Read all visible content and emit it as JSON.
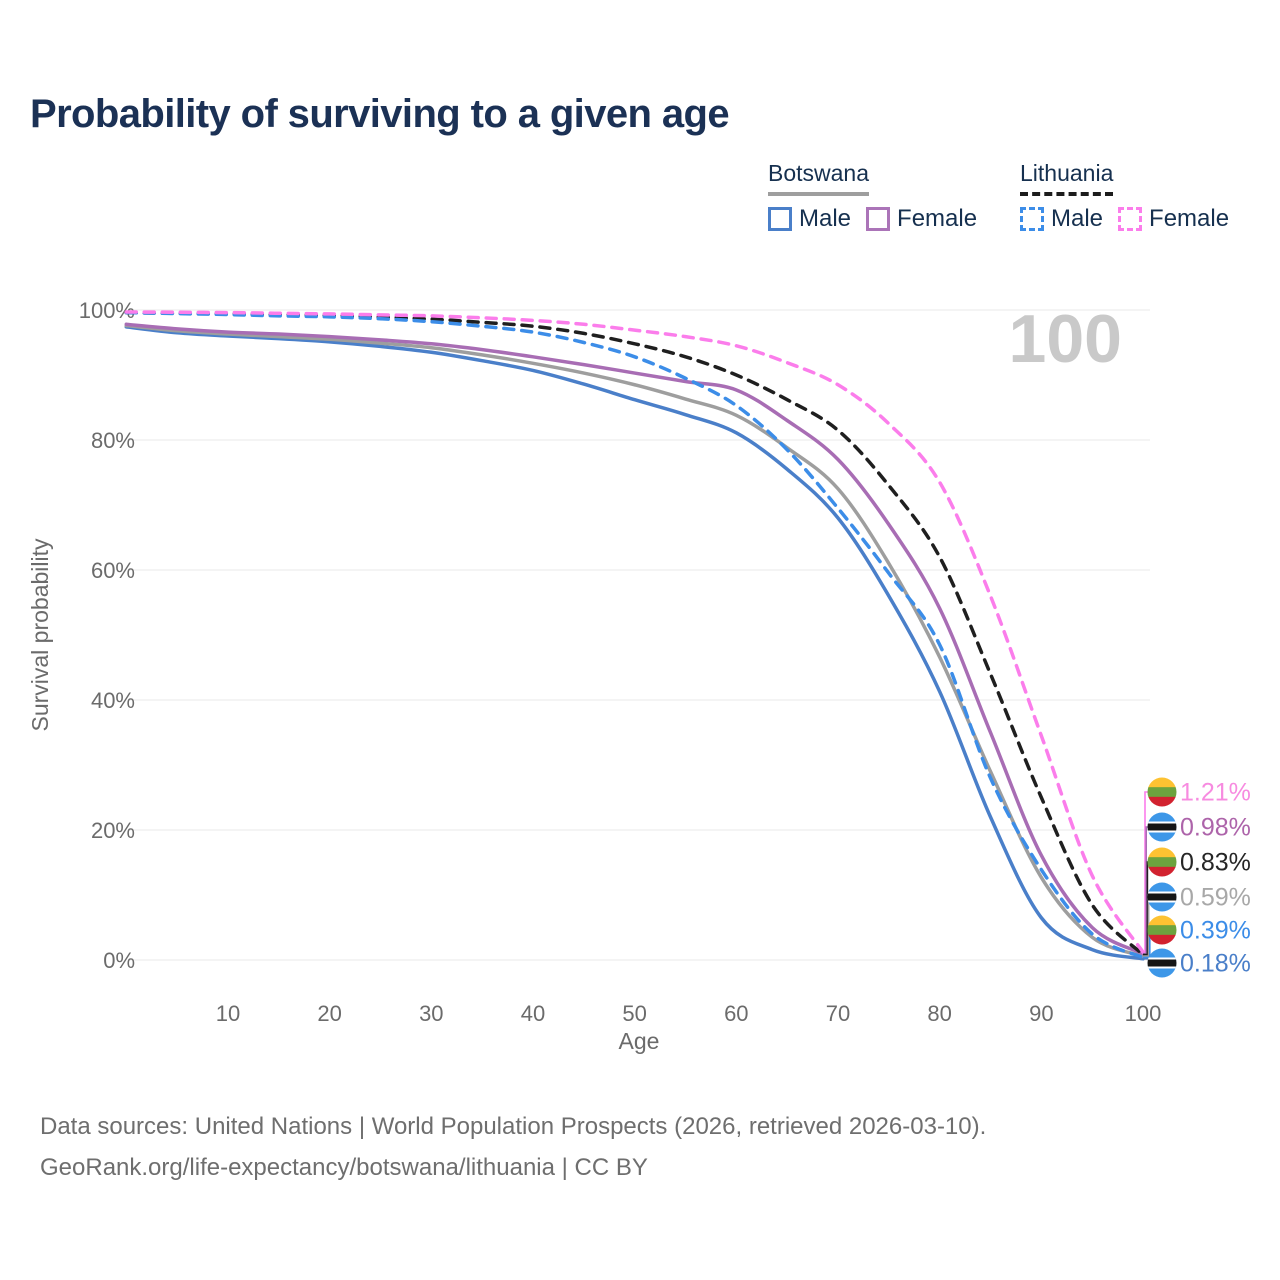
{
  "page": {
    "title": "Probability of surviving to a given age",
    "watermark": "100"
  },
  "legend": {
    "groups": [
      {
        "id": "botswana",
        "name": "Botswana",
        "line_style": "solid",
        "underline_color": "#9e9e9e",
        "items": [
          {
            "label": "Male",
            "color": "#4a7fc9"
          },
          {
            "label": "Female",
            "color": "#ab74b8"
          }
        ]
      },
      {
        "id": "lithuania",
        "name": "Lithuania",
        "line_style": "dashed",
        "underline_color": "#1c1c1c",
        "items": [
          {
            "label": "Male",
            "color": "#3c8de8"
          },
          {
            "label": "Female",
            "color": "#fb7deb"
          }
        ]
      }
    ]
  },
  "chart_data": {
    "type": "line",
    "title": "Probability of surviving to a given age",
    "xlabel": "Age",
    "ylabel": "Survival probability",
    "xlim": [
      0,
      100
    ],
    "ylim": [
      0,
      100
    ],
    "grid": true,
    "x_ticks": [
      10,
      20,
      30,
      40,
      50,
      60,
      70,
      80,
      90,
      100
    ],
    "y_ticks": [
      {
        "value": 0,
        "label": "0%"
      },
      {
        "value": 20,
        "label": "20%"
      },
      {
        "value": 40,
        "label": "40%"
      },
      {
        "value": 60,
        "label": "60%"
      },
      {
        "value": 80,
        "label": "80%"
      },
      {
        "value": 100,
        "label": "100%"
      }
    ],
    "x": [
      0,
      5,
      10,
      15,
      20,
      25,
      30,
      35,
      40,
      45,
      50,
      55,
      60,
      65,
      70,
      75,
      80,
      85,
      90,
      95,
      100
    ],
    "series": [
      {
        "name": "Botswana Male",
        "country": "Botswana",
        "sex": "Male",
        "color": "#4a7fc9",
        "dash": false,
        "flag": "botswana",
        "end_label": "0.18%",
        "end_label_color": "#4a7fc9",
        "values": [
          97.4,
          96.5,
          96.0,
          95.6,
          95.1,
          94.4,
          93.5,
          92.2,
          90.7,
          88.6,
          86.2,
          83.9,
          81.1,
          75.5,
          68.0,
          56.0,
          41.3,
          22.0,
          6.5,
          1.6,
          0.18
        ]
      },
      {
        "name": "Botswana",
        "country": "Botswana",
        "sex": "Both",
        "color": "#9e9e9e",
        "dash": false,
        "flag": "botswana",
        "end_label": "0.59%",
        "end_label_color": "#a8a8a8",
        "values": [
          97.6,
          96.8,
          96.3,
          95.9,
          95.5,
          94.9,
          94.2,
          93.1,
          91.8,
          90.3,
          88.5,
          86.3,
          83.8,
          78.8,
          72.5,
          61.0,
          46.6,
          29.0,
          12.7,
          3.5,
          0.59
        ]
      },
      {
        "name": "Botswana Female",
        "country": "Botswana",
        "sex": "Female",
        "color": "#a86db4",
        "dash": false,
        "flag": "botswana",
        "end_label": "0.98%",
        "end_label_color": "#ad64aa",
        "values": [
          97.8,
          97.1,
          96.6,
          96.3,
          95.9,
          95.4,
          94.8,
          93.9,
          92.8,
          91.6,
          90.3,
          89.0,
          87.7,
          83.0,
          77.0,
          67.0,
          54.1,
          35.0,
          16.1,
          5.0,
          0.98
        ]
      },
      {
        "name": "Lithuania",
        "country": "Lithuania",
        "sex": "Both",
        "color": "#1f1f1f",
        "dash": true,
        "flag": "lithuania",
        "end_label": "0.83%",
        "end_label_color": "#262626",
        "values": [
          99.6,
          99.5,
          99.4,
          99.3,
          99.15,
          98.9,
          98.6,
          98.1,
          97.5,
          96.4,
          94.8,
          92.8,
          90.0,
          86.2,
          81.5,
          73.0,
          62.0,
          44.0,
          25.0,
          8.5,
          0.83
        ]
      },
      {
        "name": "Lithuania Male",
        "country": "Lithuania",
        "sex": "Male",
        "color": "#3c8de8",
        "dash": true,
        "flag": "lithuania",
        "end_label": "0.39%",
        "end_label_color": "#3c8de8",
        "values": [
          99.6,
          99.45,
          99.3,
          99.1,
          98.95,
          98.65,
          98.2,
          97.5,
          96.6,
          95.0,
          92.8,
          89.5,
          85.3,
          78.5,
          69.5,
          59.5,
          48.5,
          28.0,
          13.9,
          4.0,
          0.39
        ]
      },
      {
        "name": "Lithuania Female",
        "country": "Lithuania",
        "sex": "Female",
        "color": "#fb7deb",
        "dash": true,
        "flag": "lithuania",
        "end_label": "1.21%",
        "end_label_color": "#f78be0",
        "values": [
          99.7,
          99.65,
          99.6,
          99.5,
          99.4,
          99.25,
          99.1,
          98.8,
          98.4,
          97.8,
          96.9,
          95.9,
          94.5,
          91.9,
          88.5,
          82.5,
          73.5,
          56.0,
          34.5,
          13.0,
          1.21
        ]
      }
    ],
    "end_label_order_top_to_bottom": [
      "Lithuania Female",
      "Botswana Female",
      "Lithuania",
      "Botswana",
      "Lithuania Male",
      "Botswana Male"
    ],
    "legend_position": "top-right",
    "watermark": "100"
  },
  "flags": {
    "lithuania": {
      "stripes": [
        "#fdc232",
        "#6da33e",
        "#d2222f"
      ]
    },
    "botswana": {
      "field": "#3d97e8",
      "band": "#151515",
      "fimbriation": "#ffffff"
    }
  },
  "footer": {
    "line1": "Data sources: United Nations | World Population Prospects (2026, retrieved 2026-03-10).",
    "line2": "GeoRank.org/life-expectancy/botswana/lithuania | CC BY"
  }
}
